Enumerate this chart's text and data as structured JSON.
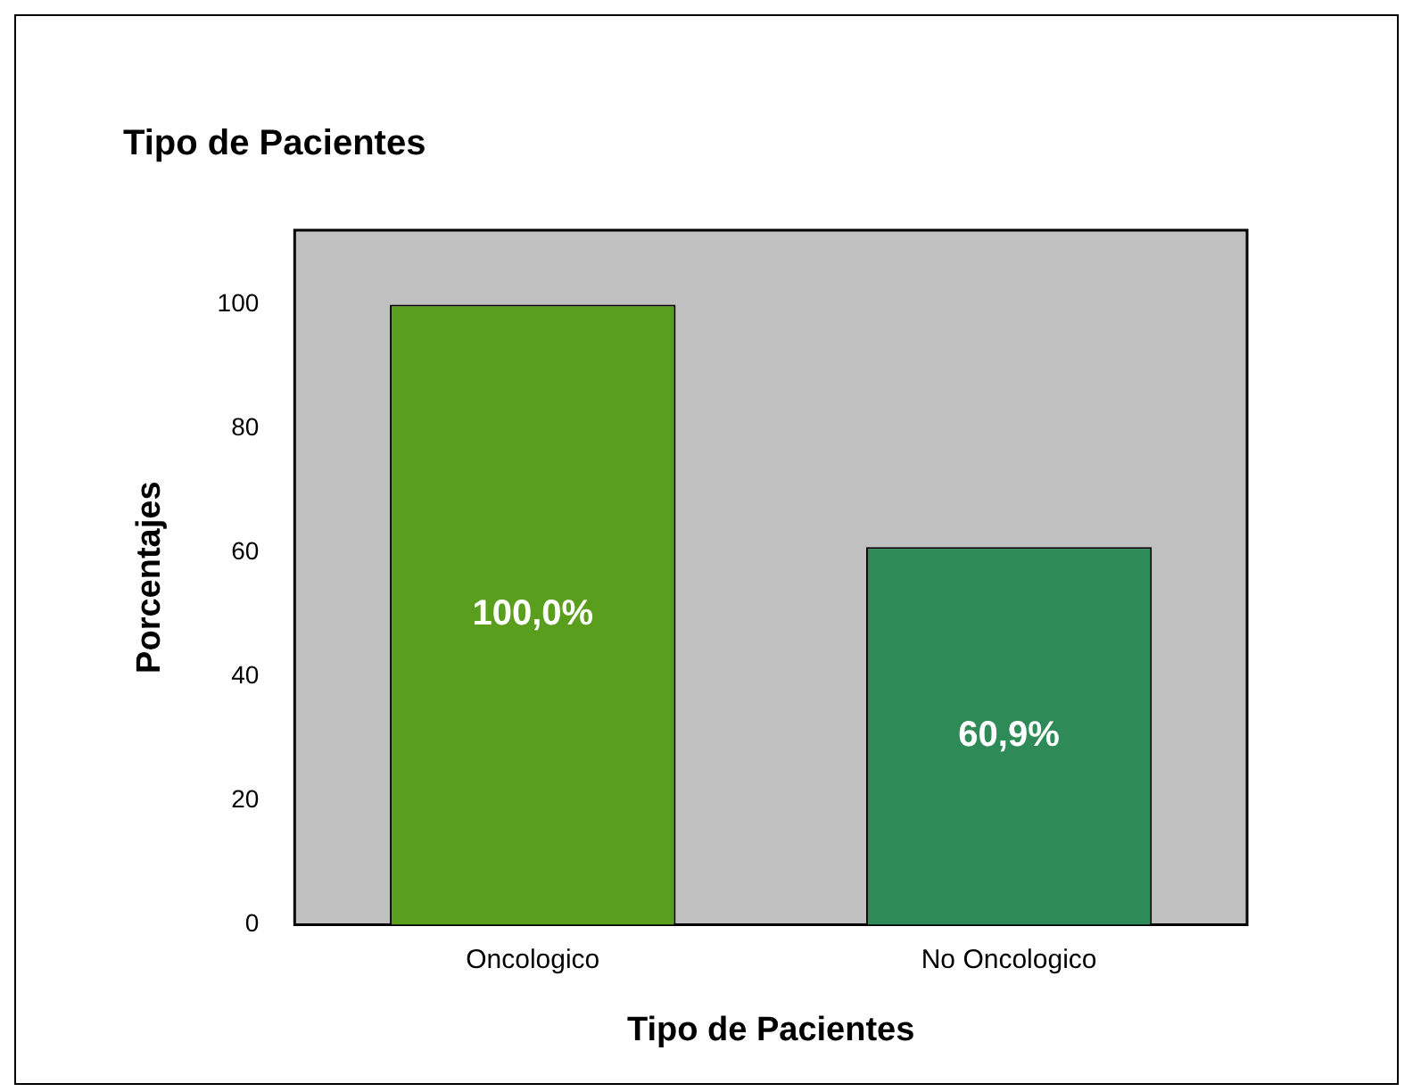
{
  "chart_data": {
    "type": "bar",
    "title": "Tipo de Pacientes",
    "xlabel": "Tipo de Pacientes",
    "ylabel": "Porcentajes",
    "categories": [
      "Oncologico",
      "No Oncologico"
    ],
    "values": [
      100,
      60.9
    ],
    "colors": [
      "#5a9e1e",
      "#2e8b57"
    ],
    "value_labels": [
      "100,0%",
      "60,9%"
    ],
    "ylim": [
      0,
      112
    ],
    "yticks": [
      0,
      20,
      40,
      60,
      80,
      100
    ],
    "grid": false,
    "legend": false
  }
}
